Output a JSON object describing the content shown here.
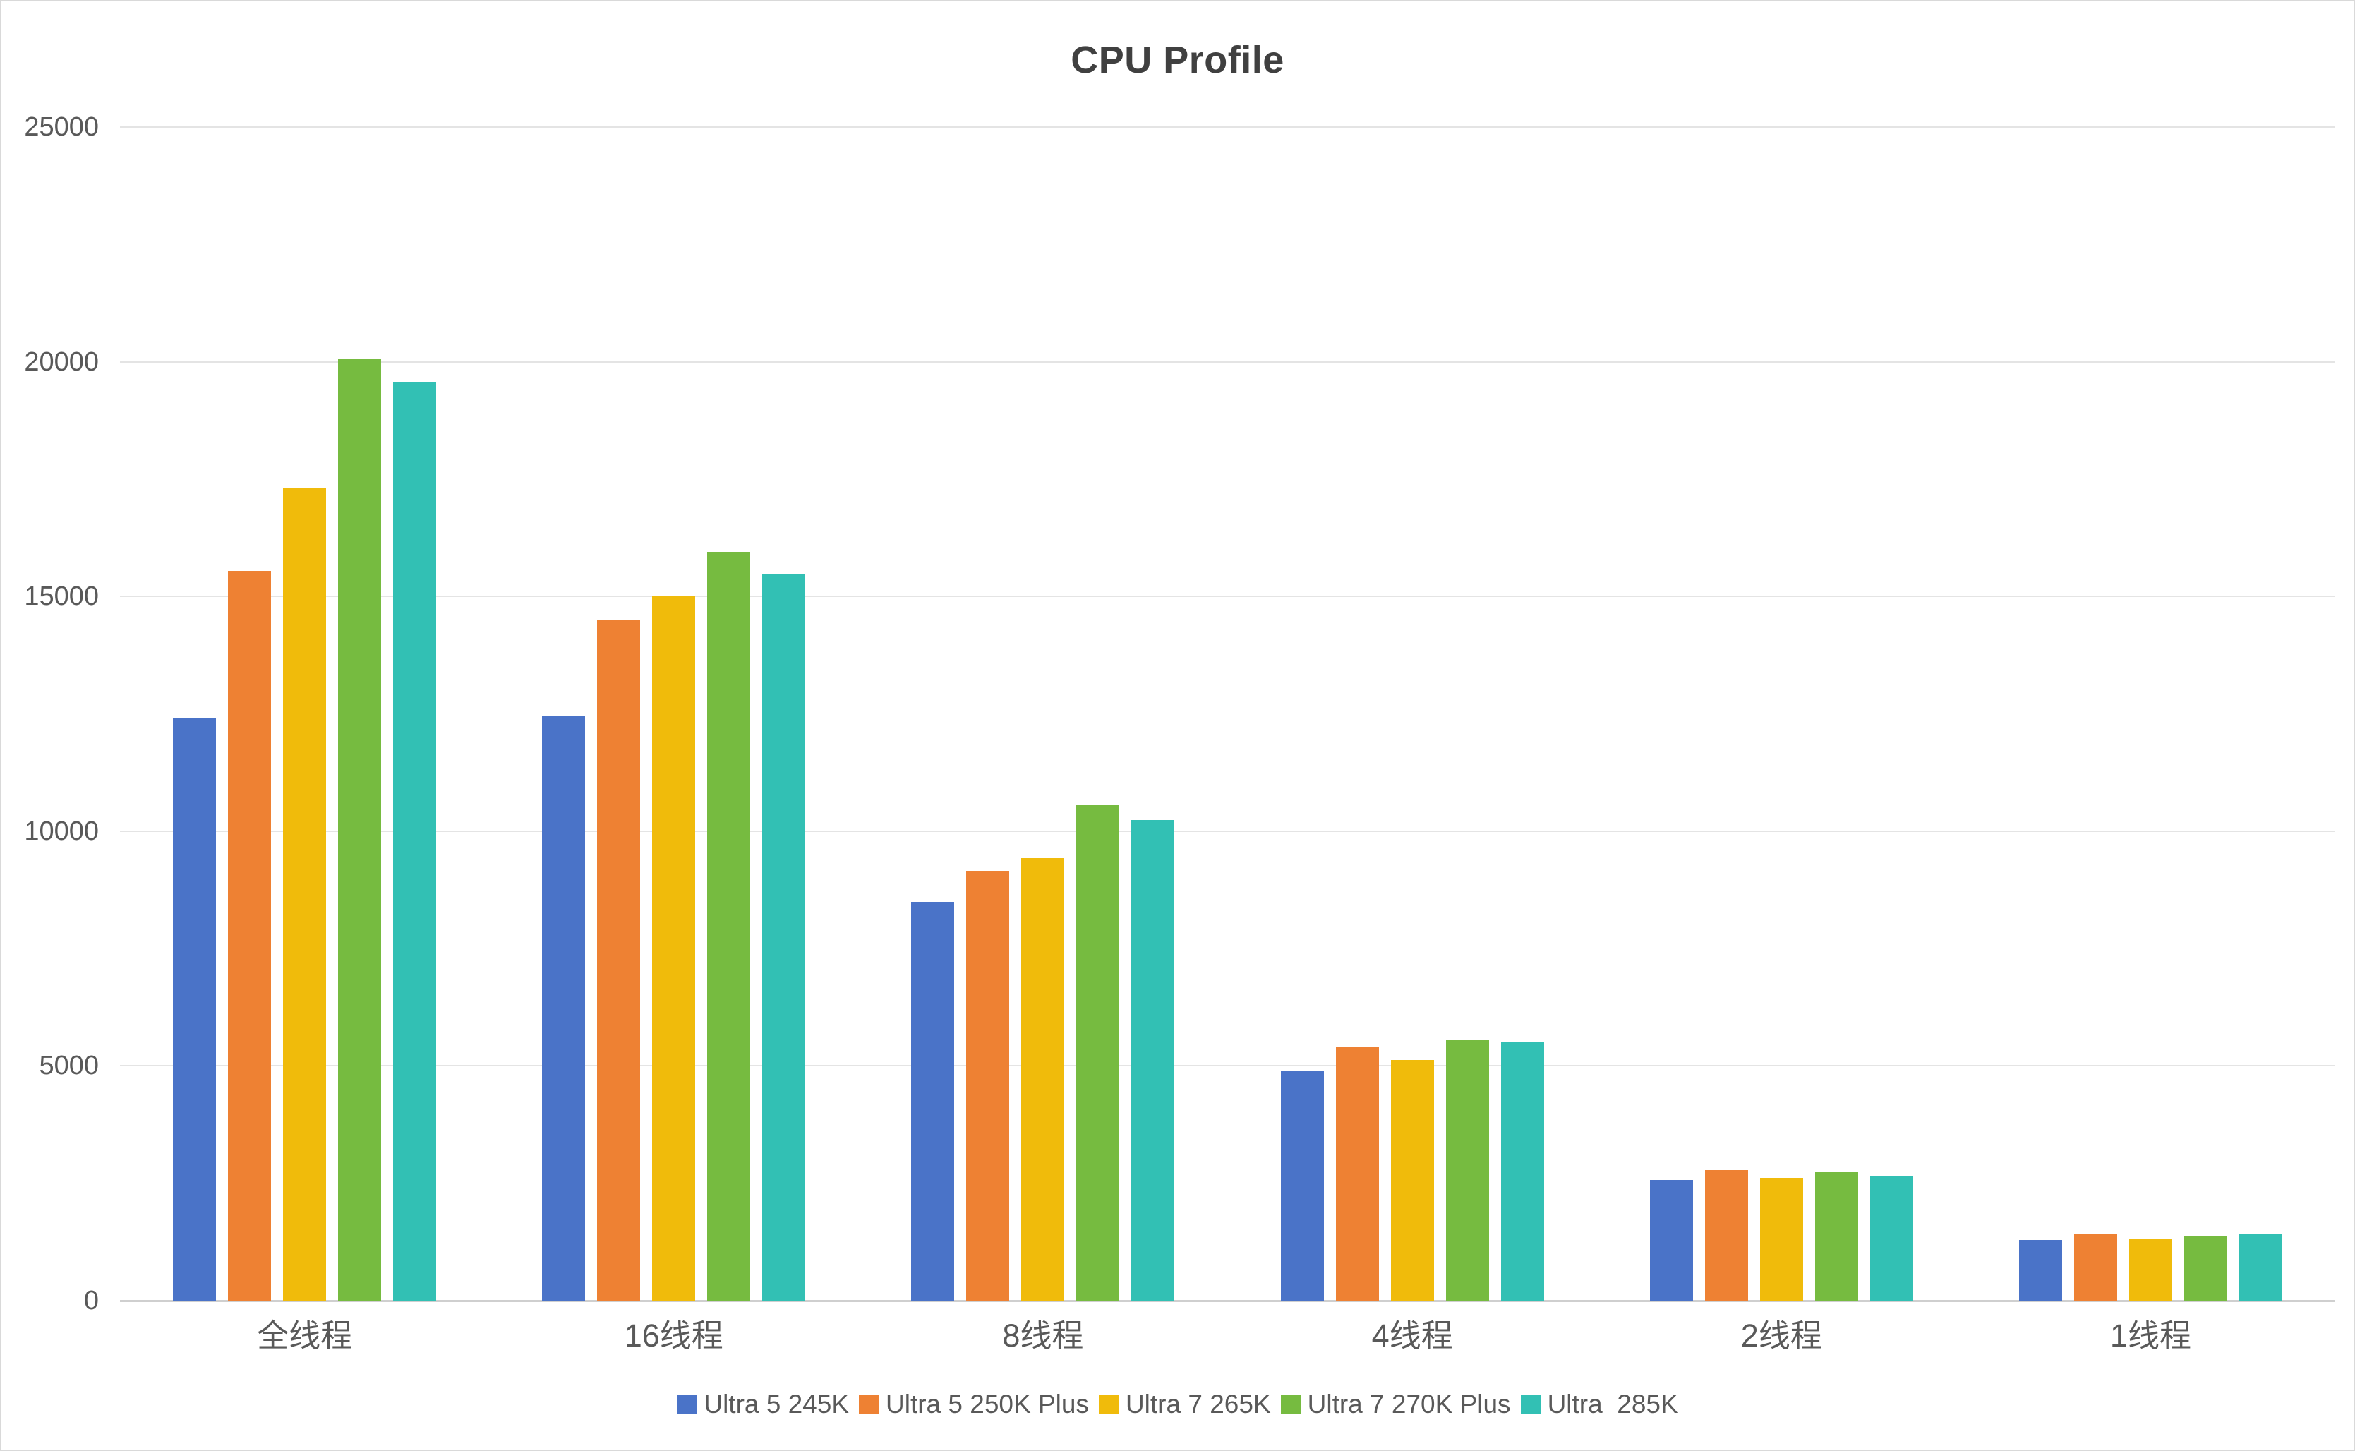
{
  "chart_data": {
    "type": "bar",
    "title": "CPU Profile",
    "categories": [
      "全线程",
      "16线程",
      "8线程",
      "4线程",
      "2线程",
      "1线程"
    ],
    "series": [
      {
        "name": "Ultra 5 245K",
        "color": "#4a73c8",
        "values": [
          12400,
          12450,
          8500,
          4900,
          2570,
          1300
        ]
      },
      {
        "name": "Ultra 5 250K Plus",
        "color": "#ee8133",
        "values": [
          15550,
          14490,
          9150,
          5390,
          2780,
          1410
        ]
      },
      {
        "name": "Ultra 7 265K",
        "color": "#f0bb0b",
        "values": [
          17300,
          15000,
          9420,
          5130,
          2610,
          1320
        ]
      },
      {
        "name": "Ultra 7 270K Plus",
        "color": "#76bb40",
        "values": [
          20050,
          15950,
          10550,
          5540,
          2730,
          1380
        ]
      },
      {
        "name": "Ultra  285K",
        "color": "#32c0b4",
        "values": [
          19580,
          15480,
          10240,
          5500,
          2650,
          1410
        ]
      }
    ],
    "xlabel": "",
    "ylabel": "",
    "ylim": [
      0,
      25000
    ],
    "y_ticks": [
      25000,
      20000,
      15000,
      10000,
      5000,
      0
    ],
    "grid": true,
    "legend_position": "bottom",
    "colors": {
      "title_text": "#404040",
      "axis_text": "#595959",
      "gridline": "#e4e4e4",
      "axis_line": "#cfcfcf",
      "background": "#ffffff",
      "border": "#d9d9d9"
    }
  }
}
